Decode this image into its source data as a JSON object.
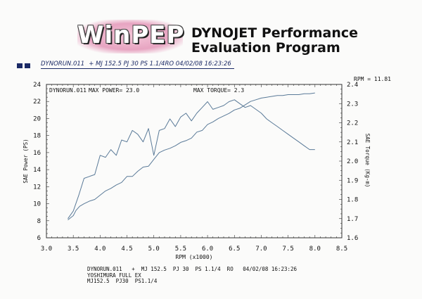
{
  "header": {
    "logo_text": "WinPEP",
    "title_line1": "DYNOJET Performance",
    "title_line2": "Evaluation Program",
    "run_file": "DYNORUN.011",
    "run_desc": "+ MJ 152.5  PJ 30  PS 1.1/4RO  04/02/08 16:23:26"
  },
  "colors": {
    "line": "#5a7a98",
    "frame": "#333333",
    "grid": "#9aa4b0",
    "header_blue": "#1b2a66"
  },
  "chart_data": {
    "type": "line",
    "run_label": "DYNORUN.011",
    "max_power_label": "MAX POWER= 23.0",
    "max_torque_label": "MAX TORQUE= 2.3",
    "rpm_readout": "RPM = 11.81",
    "xlabel": "RPM (x1000)",
    "ylabel": "SAE Power (PS)",
    "y2label": "SAE Torque (Kg-m)",
    "xlim": [
      3.0,
      8.5
    ],
    "ylim": [
      6,
      24
    ],
    "y2lim": [
      1.6,
      2.4
    ],
    "xticks": [
      "3.0",
      "3.5",
      "4.0",
      "4.5",
      "5.0",
      "5.5",
      "6.0",
      "6.5",
      "7.0",
      "7.5",
      "8.0",
      "8.5"
    ],
    "yticks": [
      "6",
      "8",
      "10",
      "12",
      "14",
      "16",
      "18",
      "20",
      "22",
      "24"
    ],
    "y2ticks": [
      "1.6",
      "1.7",
      "1.8",
      "1.9",
      "2.0",
      "2.1",
      "2.2",
      "2.3",
      "2.4"
    ],
    "grid": false,
    "series": [
      {
        "axis": "left",
        "x": [
          3.4,
          3.5,
          3.55,
          3.62,
          3.7,
          3.8,
          3.9,
          4.0,
          4.1,
          4.2,
          4.3,
          4.4,
          4.5,
          4.6,
          4.7,
          4.8,
          4.9,
          5.0,
          5.1,
          5.2,
          5.3,
          5.4,
          5.5,
          5.6,
          5.7,
          5.8,
          5.9,
          6.0,
          6.1,
          6.2,
          6.3,
          6.4,
          6.5,
          6.6,
          6.7,
          6.8,
          6.9,
          7.0,
          7.1,
          7.2,
          7.3,
          7.4,
          7.5,
          7.6,
          7.7,
          7.8,
          7.9,
          8.0
        ],
        "values": [
          8.1,
          8.6,
          9.2,
          9.7,
          10.0,
          10.3,
          10.5,
          11.0,
          11.5,
          11.8,
          12.2,
          12.5,
          13.2,
          13.2,
          13.8,
          14.3,
          14.4,
          15.2,
          16.0,
          16.3,
          16.5,
          16.8,
          17.2,
          17.4,
          17.7,
          18.4,
          18.6,
          19.3,
          19.6,
          20.0,
          20.3,
          20.6,
          21.0,
          21.2,
          21.6,
          22.0,
          22.2,
          22.4,
          22.5,
          22.6,
          22.7,
          22.7,
          22.8,
          22.8,
          22.8,
          22.9,
          22.9,
          23.0
        ]
      },
      {
        "axis": "right",
        "x": [
          3.4,
          3.5,
          3.6,
          3.7,
          3.8,
          3.9,
          4.0,
          4.1,
          4.2,
          4.3,
          4.4,
          4.5,
          4.6,
          4.7,
          4.8,
          4.9,
          5.0,
          5.1,
          5.2,
          5.3,
          5.4,
          5.5,
          5.6,
          5.7,
          5.8,
          5.9,
          6.0,
          6.1,
          6.2,
          6.3,
          6.4,
          6.5,
          6.6,
          6.7,
          6.8,
          6.9,
          7.0,
          7.1,
          7.2,
          7.3,
          7.4,
          7.5,
          7.6,
          7.7,
          7.8,
          7.9,
          8.0
        ],
        "values": [
          1.7,
          1.74,
          1.82,
          1.91,
          1.92,
          1.93,
          2.03,
          2.02,
          2.06,
          2.03,
          2.11,
          2.1,
          2.16,
          2.14,
          2.1,
          2.17,
          2.03,
          2.16,
          2.17,
          2.22,
          2.18,
          2.23,
          2.25,
          2.21,
          2.25,
          2.28,
          2.31,
          2.27,
          2.28,
          2.29,
          2.31,
          2.32,
          2.3,
          2.28,
          2.29,
          2.27,
          2.25,
          2.22,
          2.2,
          2.18,
          2.16,
          2.14,
          2.12,
          2.1,
          2.08,
          2.06,
          2.06
        ]
      }
    ]
  },
  "footer": {
    "line1": "DYNORUN.011   +  MJ 152.5  PJ 30  PS 1.1/4  RO   04/02/08 16:23:26",
    "line2": "YOSHIMURA FULL EX",
    "line3": "MJ152.5  PJ30  PS1.1/4"
  }
}
